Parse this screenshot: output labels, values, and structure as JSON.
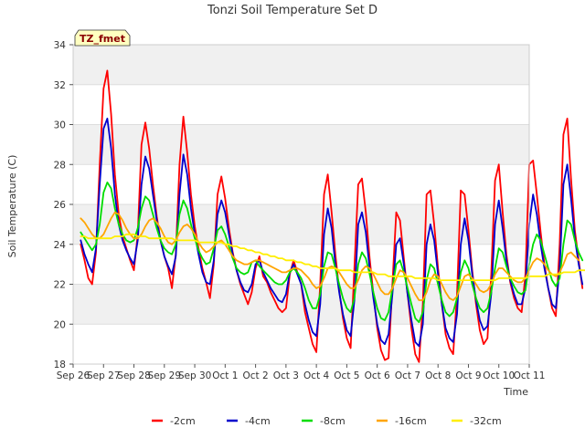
{
  "chart_data": {
    "type": "line",
    "title": "Tonzi Soil Temperature Set D",
    "xlabel": "Time",
    "ylabel": "Soil Temperature (C)",
    "badge": "TZ_fmet",
    "ylim": [
      18,
      34
    ],
    "yticks": [
      18,
      20,
      22,
      24,
      26,
      28,
      30,
      32,
      34
    ],
    "xlim": [
      0,
      15
    ],
    "xticks": [
      "Sep 26",
      "Sep 27",
      "Sep 28",
      "Sep 29",
      "Sep 30",
      "Oct 1",
      "Oct 2",
      "Oct 3",
      "Oct 4",
      "Oct 5",
      "Oct 6",
      "Oct 7",
      "Oct 8",
      "Oct 9",
      "Oct 10",
      "Oct 11"
    ],
    "grid": "horizontal bands",
    "legend_position": "bottom",
    "series": [
      {
        "name": "-2cm",
        "color": "#ff0000",
        "x_start": 0.25,
        "x_step": 0.125,
        "values": [
          24.0,
          23.2,
          22.3,
          22.0,
          23.6,
          28.0,
          31.8,
          32.7,
          30.5,
          27.5,
          25.5,
          24.4,
          23.8,
          23.2,
          22.7,
          24.5,
          29.0,
          30.1,
          28.8,
          27.0,
          25.4,
          24.2,
          23.4,
          22.8,
          21.8,
          23.5,
          28.0,
          30.4,
          28.6,
          26.5,
          24.9,
          23.8,
          22.8,
          22.1,
          21.3,
          23.0,
          26.5,
          27.4,
          26.3,
          24.8,
          23.6,
          22.7,
          22.0,
          21.5,
          21.0,
          21.6,
          22.8,
          23.4,
          22.4,
          22.1,
          21.6,
          21.2,
          20.8,
          20.6,
          20.8,
          22.5,
          23.2,
          22.6,
          22.0,
          20.6,
          19.8,
          19.0,
          18.6,
          22.0,
          26.5,
          27.5,
          25.6,
          23.5,
          21.7,
          20.3,
          19.3,
          18.8,
          22.8,
          27.0,
          27.3,
          25.6,
          23.3,
          21.5,
          19.8,
          18.7,
          18.2,
          18.3,
          22.0,
          25.6,
          25.2,
          23.3,
          21.5,
          19.8,
          18.5,
          18.1,
          21.0,
          26.5,
          26.7,
          25.0,
          22.8,
          21.0,
          19.5,
          18.8,
          18.5,
          21.5,
          26.7,
          26.5,
          24.7,
          22.7,
          21.0,
          19.7,
          19.0,
          19.3,
          22.5,
          27.2,
          28.0,
          25.6,
          23.5,
          22.1,
          21.3,
          20.8,
          20.6,
          22.5,
          28.0,
          28.2,
          26.5,
          24.6,
          23.0,
          21.8,
          20.8,
          20.4,
          24.0,
          29.5,
          30.3,
          27.3,
          24.7,
          23.2,
          21.8
        ]
      },
      {
        "name": "-4cm",
        "color": "#0000cc",
        "x_start": 0.25,
        "x_step": 0.125,
        "values": [
          24.2,
          23.5,
          23.0,
          22.6,
          23.8,
          27.0,
          29.8,
          30.3,
          28.8,
          26.5,
          25.0,
          24.2,
          23.7,
          23.3,
          23.0,
          24.2,
          27.0,
          28.4,
          27.8,
          26.5,
          25.2,
          24.2,
          23.4,
          22.9,
          22.5,
          23.4,
          26.5,
          28.5,
          27.5,
          25.8,
          24.5,
          23.5,
          22.6,
          22.1,
          22.0,
          23.2,
          25.5,
          26.2,
          25.6,
          24.5,
          23.5,
          22.7,
          22.1,
          21.7,
          21.6,
          22.0,
          23.0,
          23.2,
          22.6,
          22.2,
          21.8,
          21.5,
          21.2,
          21.1,
          21.5,
          22.6,
          23.0,
          22.5,
          22.0,
          21.0,
          20.2,
          19.6,
          19.4,
          21.0,
          24.5,
          25.8,
          24.8,
          23.0,
          21.6,
          20.5,
          19.7,
          19.4,
          21.2,
          25.0,
          25.6,
          24.6,
          22.8,
          21.3,
          20.0,
          19.2,
          19.0,
          19.5,
          21.5,
          24.0,
          24.3,
          23.0,
          21.5,
          20.2,
          19.1,
          18.9,
          20.0,
          24.0,
          25.0,
          24.2,
          22.5,
          21.0,
          19.8,
          19.3,
          19.1,
          20.5,
          24.0,
          25.3,
          24.2,
          22.5,
          21.2,
          20.2,
          19.7,
          19.9,
          21.5,
          25.0,
          26.2,
          24.8,
          23.2,
          22.2,
          21.5,
          21.0,
          21.0,
          21.8,
          25.0,
          26.5,
          25.5,
          24.0,
          22.8,
          21.8,
          21.0,
          20.8,
          22.8,
          27.0,
          28.0,
          26.3,
          24.3,
          23.0,
          22.0
        ]
      },
      {
        "name": "-8cm",
        "color": "#00dd00",
        "x_start": 0.25,
        "x_step": 0.125,
        "values": [
          24.6,
          24.3,
          24.0,
          23.7,
          24.0,
          25.0,
          26.6,
          27.1,
          26.8,
          25.8,
          25.0,
          24.5,
          24.2,
          24.1,
          24.2,
          24.8,
          25.8,
          26.4,
          26.2,
          25.5,
          24.8,
          24.2,
          23.8,
          23.6,
          23.5,
          24.0,
          25.5,
          26.2,
          25.8,
          25.0,
          24.3,
          23.7,
          23.3,
          23.0,
          23.1,
          23.8,
          24.7,
          24.9,
          24.5,
          23.9,
          23.3,
          22.8,
          22.6,
          22.5,
          22.6,
          23.1,
          23.2,
          22.9,
          22.7,
          22.5,
          22.3,
          22.1,
          22.0,
          22.0,
          22.2,
          22.6,
          22.8,
          22.6,
          22.3,
          21.8,
          21.2,
          20.8,
          20.8,
          21.5,
          22.9,
          23.6,
          23.5,
          22.8,
          22.0,
          21.3,
          20.8,
          20.6,
          21.3,
          23.0,
          23.6,
          23.3,
          22.5,
          21.6,
          20.8,
          20.3,
          20.2,
          20.6,
          21.8,
          23.0,
          23.2,
          22.6,
          21.8,
          21.0,
          20.3,
          20.1,
          20.6,
          22.2,
          23.0,
          22.8,
          22.0,
          21.2,
          20.6,
          20.4,
          20.6,
          21.3,
          22.6,
          23.2,
          22.8,
          22.0,
          21.3,
          20.8,
          20.6,
          20.8,
          21.6,
          22.8,
          23.8,
          23.6,
          22.9,
          22.3,
          21.9,
          21.6,
          21.5,
          21.7,
          23.0,
          24.0,
          24.5,
          24.2,
          23.5,
          22.8,
          22.2,
          21.9,
          22.3,
          24.0,
          25.2,
          25.0,
          24.2,
          23.6,
          23.2
        ]
      },
      {
        "name": "-16cm",
        "color": "#ffa500",
        "x_start": 0.25,
        "x_step": 0.125,
        "values": [
          25.3,
          25.1,
          24.8,
          24.5,
          24.3,
          24.3,
          24.5,
          24.9,
          25.3,
          25.6,
          25.5,
          25.2,
          24.8,
          24.5,
          24.3,
          24.3,
          24.5,
          24.9,
          25.2,
          25.3,
          25.1,
          24.8,
          24.4,
          24.1,
          24.0,
          24.2,
          24.6,
          24.9,
          25.0,
          24.8,
          24.5,
          24.1,
          23.8,
          23.6,
          23.7,
          23.9,
          24.1,
          24.2,
          24.0,
          23.7,
          23.4,
          23.2,
          23.1,
          23.0,
          23.0,
          23.1,
          23.2,
          23.2,
          23.1,
          23.0,
          22.9,
          22.8,
          22.7,
          22.6,
          22.6,
          22.7,
          22.8,
          22.8,
          22.7,
          22.5,
          22.3,
          22.0,
          21.8,
          21.9,
          22.3,
          22.8,
          22.9,
          22.8,
          22.6,
          22.3,
          22.0,
          21.8,
          21.8,
          22.2,
          22.7,
          22.9,
          22.8,
          22.5,
          22.1,
          21.7,
          21.5,
          21.5,
          21.8,
          22.3,
          22.7,
          22.6,
          22.3,
          21.9,
          21.5,
          21.2,
          21.2,
          21.6,
          22.2,
          22.5,
          22.4,
          22.0,
          21.6,
          21.3,
          21.2,
          21.4,
          21.9,
          22.4,
          22.5,
          22.3,
          22.0,
          21.7,
          21.6,
          21.7,
          22.0,
          22.5,
          22.8,
          22.8,
          22.6,
          22.4,
          22.2,
          22.1,
          22.1,
          22.3,
          22.7,
          23.1,
          23.3,
          23.2,
          23.0,
          22.7,
          22.5,
          22.4,
          22.6,
          23.0,
          23.5,
          23.6,
          23.4,
          23.2
        ]
      },
      {
        "name": "-32cm",
        "color": "#ffee00",
        "x_start": 0.25,
        "x_step": 0.125,
        "values": [
          24.4,
          24.4,
          24.3,
          24.3,
          24.3,
          24.3,
          24.3,
          24.3,
          24.3,
          24.4,
          24.4,
          24.4,
          24.5,
          24.5,
          24.5,
          24.4,
          24.4,
          24.4,
          24.3,
          24.3,
          24.3,
          24.3,
          24.3,
          24.3,
          24.3,
          24.2,
          24.2,
          24.2,
          24.2,
          24.2,
          24.2,
          24.1,
          24.1,
          24.1,
          24.1,
          24.1,
          24.1,
          24.1,
          24.0,
          24.0,
          23.9,
          23.9,
          23.8,
          23.8,
          23.7,
          23.7,
          23.6,
          23.6,
          23.5,
          23.5,
          23.4,
          23.4,
          23.3,
          23.3,
          23.2,
          23.2,
          23.2,
          23.1,
          23.1,
          23.0,
          23.0,
          22.9,
          22.9,
          22.8,
          22.8,
          22.8,
          22.8,
          22.8,
          22.7,
          22.7,
          22.7,
          22.7,
          22.6,
          22.6,
          22.6,
          22.6,
          22.6,
          22.6,
          22.5,
          22.5,
          22.5,
          22.4,
          22.4,
          22.4,
          22.4,
          22.4,
          22.4,
          22.4,
          22.3,
          22.3,
          22.3,
          22.3,
          22.3,
          22.3,
          22.2,
          22.2,
          22.2,
          22.2,
          22.2,
          22.2,
          22.2,
          22.2,
          22.2,
          22.2,
          22.2,
          22.2,
          22.2,
          22.2,
          22.2,
          22.2,
          22.3,
          22.3,
          22.3,
          22.3,
          22.3,
          22.3,
          22.3,
          22.3,
          22.4,
          22.4,
          22.4,
          22.4,
          22.4,
          22.5,
          22.5,
          22.5,
          22.5,
          22.6,
          22.6,
          22.6,
          22.6,
          22.7,
          22.7,
          22.7,
          22.7
        ]
      }
    ]
  }
}
